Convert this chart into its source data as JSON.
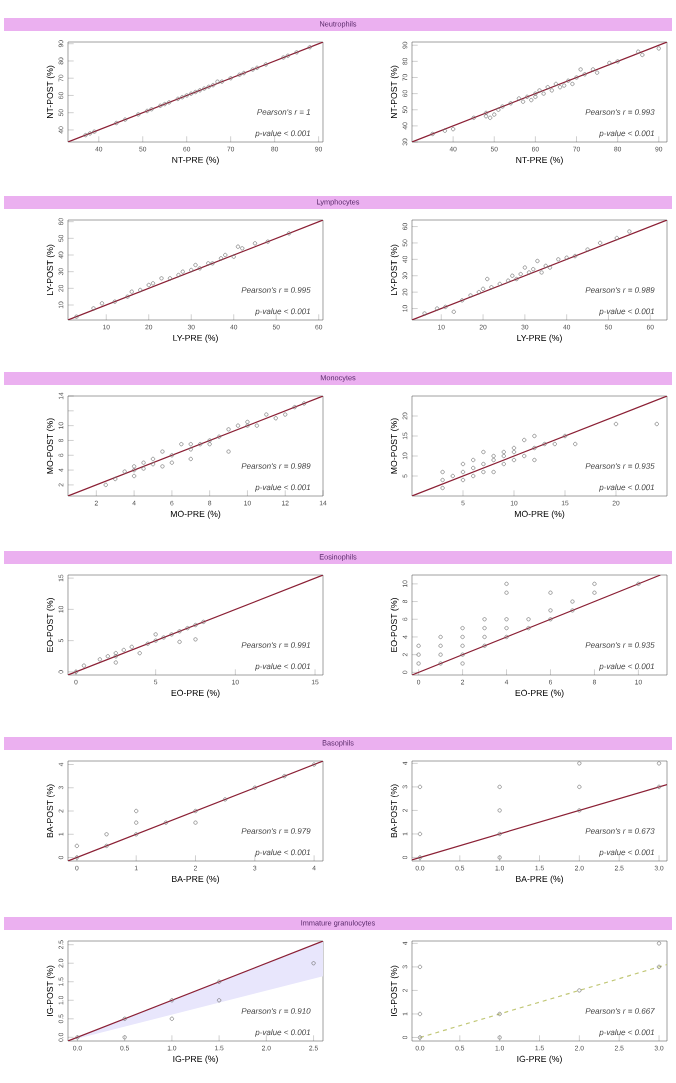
{
  "chart_data": [
    {
      "type": "scatter",
      "title": "Neutrophils",
      "xlabel": "NT-PRE (%)",
      "ylabel": "NT-POST (%)",
      "xlim": [
        33,
        91
      ],
      "ylim": [
        33,
        91
      ],
      "xticks": [
        40,
        50,
        60,
        70,
        80,
        90
      ],
      "yticks": [
        40,
        50,
        60,
        70,
        80,
        90
      ],
      "annotations": [
        "Pearson's r = 1",
        "p-value < 0.001"
      ],
      "series": [
        {
          "marker": "circle",
          "color": "#707070",
          "x": [
            37,
            38,
            39,
            44,
            46,
            49,
            51,
            52,
            54,
            55,
            56,
            58,
            59,
            60,
            61,
            62,
            63,
            64,
            65,
            66,
            67,
            68,
            70,
            72,
            73,
            75,
            76,
            78,
            82,
            83,
            85,
            88
          ],
          "values": [
            37,
            38,
            39,
            44,
            46,
            49,
            51,
            52,
            54,
            55,
            56,
            58,
            59,
            60,
            61,
            62,
            63,
            64,
            65,
            66,
            68,
            68,
            70,
            72,
            73,
            75,
            76,
            78,
            82,
            83,
            85,
            88
          ]
        },
        {
          "type": "line",
          "color": "#8b2035",
          "x": [
            33,
            91
          ],
          "values": [
            33,
            91
          ]
        }
      ]
    },
    {
      "type": "scatter",
      "xlabel": "NT-PRE (%)",
      "ylabel": "NT-POST (%)",
      "xlim": [
        30,
        92
      ],
      "ylim": [
        30,
        92
      ],
      "xticks": [
        40,
        50,
        60,
        70,
        80,
        90
      ],
      "yticks": [
        30,
        40,
        50,
        60,
        70,
        80,
        90
      ],
      "annotations": [
        "Pearson's r = 0.993",
        "p-value < 0.001"
      ],
      "series": [
        {
          "marker": "circle",
          "color": "#707070",
          "x": [
            35,
            38,
            40,
            45,
            48,
            48,
            49,
            50,
            51,
            52,
            54,
            56,
            57,
            58,
            59,
            60,
            60,
            61,
            62,
            63,
            64,
            65,
            66,
            67,
            68,
            69,
            70,
            71,
            72,
            74,
            75,
            78,
            80,
            85,
            86,
            90
          ],
          "values": [
            35,
            37,
            38,
            45,
            48,
            46,
            45,
            47,
            50,
            52,
            54,
            57,
            55,
            58,
            56,
            60,
            58,
            62,
            60,
            64,
            62,
            66,
            64,
            65,
            68,
            66,
            70,
            75,
            72,
            75,
            73,
            79,
            80,
            86,
            84,
            88
          ]
        },
        {
          "type": "line",
          "color": "#8b2035",
          "x": [
            30,
            92
          ],
          "values": [
            30,
            92
          ]
        }
      ]
    },
    {
      "type": "scatter",
      "title": "Lymphocytes",
      "xlabel": "LY-PRE (%)",
      "ylabel": "LY-POST (%)",
      "xlim": [
        1,
        61
      ],
      "ylim": [
        1,
        61
      ],
      "xticks": [
        10,
        20,
        30,
        40,
        50,
        60
      ],
      "yticks": [
        10,
        20,
        30,
        40,
        50,
        60
      ],
      "annotations": [
        "Pearson's r = 0.995",
        "p-value < 0.001"
      ],
      "series": [
        {
          "marker": "circle",
          "color": "#707070",
          "x": [
            3,
            7,
            9,
            12,
            15,
            16,
            18,
            20,
            21,
            23,
            25,
            27,
            28,
            30,
            31,
            32,
            34,
            35,
            37,
            38,
            40,
            41,
            42,
            45,
            48,
            53
          ],
          "values": [
            3,
            8,
            11,
            12,
            15,
            18,
            19,
            22,
            23,
            26,
            26,
            28,
            30,
            31,
            34,
            32,
            35,
            35,
            38,
            40,
            39,
            45,
            44,
            47,
            48,
            53
          ]
        },
        {
          "type": "line",
          "color": "#8b2035",
          "x": [
            1,
            61
          ],
          "values": [
            1,
            61
          ]
        }
      ]
    },
    {
      "type": "scatter",
      "xlabel": "LY-PRE (%)",
      "ylabel": "LY-POST (%)",
      "xlim": [
        3,
        64
      ],
      "ylim": [
        3,
        64
      ],
      "xticks": [
        10,
        20,
        30,
        40,
        50,
        60
      ],
      "yticks": [
        10,
        20,
        30,
        40,
        50,
        60
      ],
      "annotations": [
        "Pearson's r = 0.989",
        "p-value < 0.001"
      ],
      "series": [
        {
          "marker": "circle",
          "color": "#707070",
          "x": [
            6,
            9,
            11,
            13,
            15,
            17,
            19,
            20,
            21,
            22,
            24,
            26,
            27,
            28,
            29,
            30,
            31,
            32,
            33,
            34,
            35,
            36,
            38,
            40,
            42,
            45,
            48,
            52,
            55
          ],
          "values": [
            7,
            10,
            11,
            8,
            15,
            18,
            20,
            22,
            28,
            23,
            25,
            27,
            30,
            28,
            31,
            35,
            32,
            34,
            39,
            32,
            36,
            35,
            40,
            41,
            42,
            46,
            50,
            53,
            57
          ]
        },
        {
          "type": "line",
          "color": "#8b2035",
          "x": [
            3,
            64
          ],
          "values": [
            3,
            64
          ]
        }
      ]
    },
    {
      "type": "scatter",
      "title": "Monocytes",
      "xlabel": "MO-PRE (%)",
      "ylabel": "MO-POST (%)",
      "xlim": [
        0.5,
        14
      ],
      "ylim": [
        0.5,
        14
      ],
      "xticks": [
        2,
        4,
        6,
        8,
        10,
        12,
        14
      ],
      "yticks": [
        2,
        4,
        6,
        8,
        10,
        {
          "value": 12,
          "label": null
        },
        14
      ],
      "annotations": [
        "Pearson's r = 0.989",
        "p-value < 0.001"
      ],
      "series": [
        {
          "marker": "circle",
          "color": "#707070",
          "x": [
            2.5,
            3,
            3.5,
            4,
            4,
            4,
            4.5,
            4.5,
            5,
            5,
            5.5,
            5.5,
            6,
            6,
            6.5,
            7,
            7,
            7,
            7.5,
            8,
            8,
            8.5,
            9,
            9,
            9.5,
            10,
            10,
            10.5,
            11,
            11.5,
            12,
            12.5,
            13
          ],
          "values": [
            2,
            2.8,
            3.8,
            3.2,
            4,
            4.5,
            4.2,
            5,
            4.8,
            5.5,
            4.5,
            6.5,
            5,
            6,
            7.5,
            5.5,
            6.8,
            7.5,
            7.5,
            8,
            7.5,
            8.5,
            9.5,
            6.5,
            10,
            10.5,
            10,
            10,
            11.5,
            11,
            11.5,
            12.5,
            13
          ]
        },
        {
          "type": "line",
          "color": "#8b2035",
          "x": [
            0.5,
            14
          ],
          "values": [
            0.5,
            14
          ]
        }
      ]
    },
    {
      "type": "scatter",
      "xlabel": "MO-PRE (%)",
      "ylabel": "MO-POST (%)",
      "xlim": [
        0,
        25
      ],
      "ylim": [
        0,
        25
      ],
      "xticks": [
        5,
        10,
        15,
        20
      ],
      "yticks": [
        5,
        10,
        15,
        20
      ],
      "annotations": [
        "Pearson's r = 0.935",
        "p-value < 0.001"
      ],
      "series": [
        {
          "marker": "circle",
          "color": "#707070",
          "x": [
            3,
            3,
            3,
            4,
            5,
            5,
            5,
            6,
            6,
            6,
            7,
            7,
            7,
            8,
            8,
            8,
            9,
            9,
            9,
            10,
            10,
            10,
            11,
            11,
            12,
            12,
            12,
            13,
            14,
            15,
            16,
            20,
            24
          ],
          "values": [
            2,
            4,
            6,
            5,
            4,
            6,
            8,
            5,
            7,
            9,
            6,
            8,
            11,
            6,
            9,
            10,
            8,
            10,
            11,
            9,
            11,
            12,
            10,
            14,
            9,
            12,
            15,
            13,
            13,
            15,
            13,
            18,
            18
          ]
        },
        {
          "type": "line",
          "color": "#8b2035",
          "x": [
            0,
            25
          ],
          "values": [
            0,
            25
          ]
        }
      ]
    },
    {
      "type": "scatter",
      "title": "Eosinophils",
      "xlabel": "EO-PRE (%)",
      "ylabel": "EO-POST (%)",
      "xlim": [
        -0.5,
        15.5
      ],
      "ylim": [
        -0.5,
        15.5
      ],
      "xticks": [
        0,
        5,
        10,
        15
      ],
      "yticks": [
        0,
        5,
        10,
        15
      ],
      "annotations": [
        "Pearson's r = 0.991",
        "p-value < 0.001"
      ],
      "series": [
        {
          "marker": "circle",
          "color": "#707070",
          "x": [
            0,
            0.5,
            1.5,
            2,
            2.5,
            2.5,
            2.5,
            3,
            3.5,
            4,
            4.5,
            5,
            5,
            5.5,
            6,
            6.5,
            6.5,
            7,
            7.5,
            7.5,
            8
          ],
          "values": [
            0,
            1,
            2,
            2.5,
            1.5,
            2.5,
            3,
            3.5,
            4,
            3,
            4.5,
            6,
            5,
            5.5,
            6,
            4.8,
            6.5,
            7,
            5.2,
            7.5,
            8
          ]
        },
        {
          "type": "line",
          "color": "#8b2035",
          "x": [
            -0.5,
            15.5
          ],
          "values": [
            -0.5,
            15.5
          ]
        }
      ]
    },
    {
      "type": "scatter",
      "xlabel": "EO-PRE (%)",
      "ylabel": "EO-POST (%)",
      "xlim": [
        -0.3,
        11.3
      ],
      "ylim": [
        -0.3,
        11
      ],
      "xticks": [
        0,
        2,
        4,
        6,
        8,
        10
      ],
      "yticks": [
        0,
        2,
        4,
        6,
        8,
        10
      ],
      "annotations": [
        "Pearson's r = 0.935",
        "p-value < 0.001"
      ],
      "series": [
        {
          "marker": "circle",
          "color": "#707070",
          "x": [
            0,
            0,
            0,
            1,
            1,
            1,
            1,
            2,
            2,
            2,
            2,
            2,
            3,
            3,
            3,
            3,
            4,
            4,
            4,
            4,
            4,
            5,
            5,
            6,
            6,
            6,
            7,
            7,
            8,
            8,
            10
          ],
          "values": [
            1,
            2,
            3,
            1,
            2,
            3,
            4,
            1,
            2,
            3,
            4,
            5,
            3,
            4,
            5,
            6,
            4,
            5,
            6,
            9,
            10,
            5,
            6,
            6,
            7,
            9,
            7,
            8,
            9,
            10,
            10
          ]
        },
        {
          "type": "line",
          "color": "#8b2035",
          "x": [
            -0.3,
            11
          ],
          "values": [
            -0.3,
            11
          ]
        }
      ]
    },
    {
      "type": "scatter",
      "title": "Basophils",
      "xlabel": "BA-PRE (%)",
      "ylabel": "BA-POST (%)",
      "xlim": [
        -0.15,
        4.15
      ],
      "ylim": [
        -0.15,
        4.15
      ],
      "xticks": [
        0,
        1,
        2,
        3,
        4
      ],
      "yticks": [
        0,
        1,
        2,
        3,
        4
      ],
      "annotations": [
        "Pearson's r = 0.979",
        "p-value < 0.001"
      ],
      "series": [
        {
          "marker": "circle",
          "color": "#707070",
          "x": [
            0,
            0,
            0.5,
            0.5,
            1,
            1,
            1,
            1.5,
            2,
            2,
            2.5,
            3,
            3.5,
            4
          ],
          "values": [
            0,
            0.5,
            0.5,
            1,
            1,
            1.5,
            2,
            1.5,
            1.5,
            2,
            2.5,
            3,
            3.5,
            4
          ]
        },
        {
          "type": "line",
          "color": "#8b2035",
          "x": [
            -0.15,
            4.15
          ],
          "values": [
            -0.15,
            4.15
          ]
        }
      ]
    },
    {
      "type": "scatter",
      "xlabel": "BA-PRE (%)",
      "ylabel": "BA-POST (%)",
      "xlim": [
        -0.1,
        3.1
      ],
      "ylim": [
        -0.15,
        4.1
      ],
      "xticks": [
        {
          "value": 0,
          "label": "0.0"
        },
        0.5,
        {
          "value": 1,
          "label": "1.0"
        },
        1.5,
        {
          "value": 2,
          "label": "2.0"
        },
        2.5,
        {
          "value": 3,
          "label": "3.0"
        }
      ],
      "yticks": [
        0,
        1,
        2,
        3,
        4
      ],
      "annotations": [
        "Pearson's r = 0.673",
        "p-value < 0.001"
      ],
      "series": [
        {
          "marker": "circle",
          "color": "#707070",
          "x": [
            0,
            0,
            0,
            1,
            1,
            1,
            1,
            2,
            2,
            2,
            3,
            3
          ],
          "values": [
            0,
            1,
            3,
            0,
            1,
            2,
            3,
            2,
            3,
            4,
            3,
            4
          ]
        },
        {
          "type": "line",
          "color": "#8b2035",
          "x": [
            -0.1,
            3.1
          ],
          "values": [
            -0.1,
            3.1
          ]
        }
      ]
    },
    {
      "type": "scatter",
      "title": "Immature granulocytes",
      "xlabel": "IG-PRE (%)",
      "ylabel": "IG-POST (%)",
      "xlim": [
        -0.1,
        2.6
      ],
      "ylim": [
        -0.1,
        2.6
      ],
      "xticks": [
        {
          "value": 0,
          "label": "0.0"
        },
        0.5,
        {
          "value": 1,
          "label": "1.0"
        },
        1.5,
        {
          "value": 2,
          "label": "2.0"
        },
        2.5
      ],
      "yticks": [
        {
          "value": 0,
          "label": "0.0"
        },
        0.5,
        {
          "value": 1,
          "label": "1.0"
        },
        1.5,
        {
          "value": 2,
          "label": "2.0"
        },
        2.5
      ],
      "annotations": [
        "Pearson's r = 0.910",
        "p-value < 0.001"
      ],
      "series": [
        {
          "type": "line",
          "color": "#8b2035",
          "x": [
            -0.1,
            2.6
          ],
          "values": [
            -0.1,
            2.6
          ],
          "lower": [
            -0.1,
            1.65
          ],
          "upper": [
            -0.1,
            2.6
          ]
        },
        {
          "marker": "circle",
          "color": "#707070",
          "x": [
            0,
            0.5,
            0.5,
            1,
            1,
            1.5,
            1.5,
            2.5
          ],
          "values": [
            0,
            0,
            0.5,
            0.5,
            1,
            1,
            1.5,
            2
          ]
        }
      ]
    },
    {
      "type": "scatter",
      "xlabel": "IG-PRE (%)",
      "ylabel": "IG-POST (%)",
      "xlim": [
        -0.1,
        3.1
      ],
      "ylim": [
        -0.15,
        4.1
      ],
      "xticks": [
        {
          "value": 0,
          "label": "0.0"
        },
        0.5,
        {
          "value": 1,
          "label": "1.0"
        },
        1.5,
        {
          "value": 2,
          "label": "2.0"
        },
        2.5,
        {
          "value": 3,
          "label": "3.0"
        }
      ],
      "yticks": [
        0,
        1,
        2,
        3,
        4
      ],
      "annotations": [
        "Pearson's r = 0.667",
        "p-value < 0.001"
      ],
      "series": [
        {
          "marker": "circle",
          "color": "#707070",
          "x": [
            0,
            0,
            0,
            1,
            1,
            2,
            3,
            3
          ],
          "values": [
            0,
            1,
            3,
            0,
            1,
            2,
            3,
            4
          ]
        },
        {
          "type": "line",
          "color": "#c2c878",
          "line_style": "dashed",
          "x": [
            0,
            3.1
          ],
          "values": [
            0,
            3.1
          ]
        }
      ]
    }
  ]
}
